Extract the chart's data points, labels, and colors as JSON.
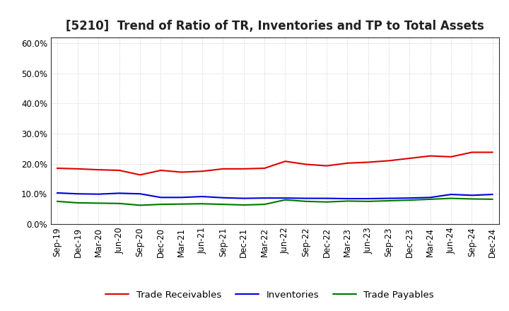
{
  "title": "[5210]  Trend of Ratio of TR, Inventories and TP to Total Assets",
  "x_labels": [
    "Sep-19",
    "Dec-19",
    "Mar-20",
    "Jun-20",
    "Sep-20",
    "Dec-20",
    "Mar-21",
    "Jun-21",
    "Sep-21",
    "Dec-21",
    "Mar-22",
    "Jun-22",
    "Sep-22",
    "Dec-22",
    "Mar-23",
    "Jun-23",
    "Sep-23",
    "Dec-23",
    "Mar-24",
    "Jun-24",
    "Sep-24",
    "Dec-24"
  ],
  "trade_receivables": [
    0.185,
    0.183,
    0.18,
    0.178,
    0.163,
    0.178,
    0.172,
    0.175,
    0.183,
    0.183,
    0.185,
    0.208,
    0.198,
    0.193,
    0.202,
    0.205,
    0.21,
    0.218,
    0.226,
    0.223,
    0.238,
    0.238
  ],
  "inventories": [
    0.103,
    0.1,
    0.099,
    0.102,
    0.1,
    0.088,
    0.088,
    0.091,
    0.087,
    0.085,
    0.086,
    0.086,
    0.085,
    0.085,
    0.084,
    0.084,
    0.085,
    0.086,
    0.088,
    0.098,
    0.095,
    0.098
  ],
  "trade_payables": [
    0.075,
    0.07,
    0.069,
    0.068,
    0.062,
    0.065,
    0.066,
    0.067,
    0.065,
    0.063,
    0.065,
    0.08,
    0.075,
    0.073,
    0.076,
    0.075,
    0.077,
    0.079,
    0.082,
    0.085,
    0.083,
    0.082
  ],
  "line_colors": [
    "#e00000",
    "#0000e0",
    "#007700"
  ],
  "legend_labels": [
    "Trade Receivables",
    "Inventories",
    "Trade Payables"
  ],
  "ylim": [
    0.0,
    0.62
  ],
  "yticks": [
    0.0,
    0.1,
    0.2,
    0.3,
    0.4,
    0.5,
    0.6
  ],
  "background_color": "#ffffff",
  "grid_color": "#bbbbbb",
  "title_fontsize": 12,
  "tick_fontsize": 8.5,
  "legend_fontsize": 9.5
}
